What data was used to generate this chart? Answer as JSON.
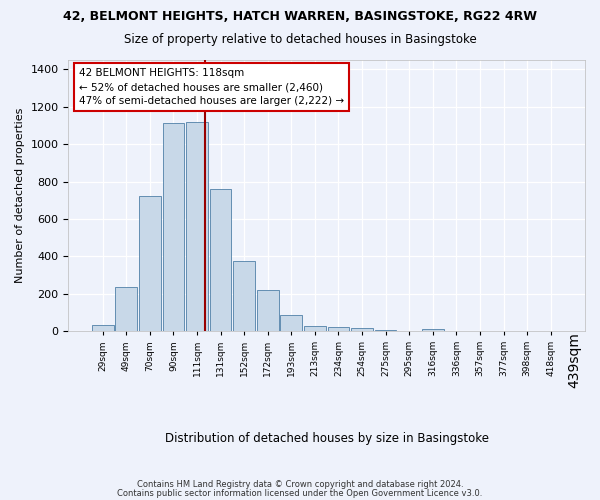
{
  "title_line1": "42, BELMONT HEIGHTS, HATCH WARREN, BASINGSTOKE, RG22 4RW",
  "title_line2": "Size of property relative to detached houses in Basingstoke",
  "xlabel": "Distribution of detached houses by size in Basingstoke",
  "ylabel": "Number of detached properties",
  "bin_labels": [
    "29sqm",
    "49sqm",
    "70sqm",
    "90sqm",
    "111sqm",
    "131sqm",
    "152sqm",
    "172sqm",
    "193sqm",
    "213sqm",
    "234sqm",
    "254sqm",
    "275sqm",
    "295sqm",
    "316sqm",
    "336sqm",
    "357sqm",
    "377sqm",
    "398sqm",
    "418sqm",
    "439sqm"
  ],
  "bar_heights": [
    30,
    235,
    725,
    1115,
    1120,
    760,
    375,
    220,
    88,
    28,
    22,
    15,
    8,
    0,
    12,
    0,
    0,
    0,
    0,
    0
  ],
  "bar_color": "#c8d8e8",
  "bar_edge_color": "#5080a8",
  "property_line_color": "#990000",
  "annotation_text": "42 BELMONT HEIGHTS: 118sqm\n← 52% of detached houses are smaller (2,460)\n47% of semi-detached houses are larger (2,222) →",
  "annotation_box_color": "#ffffff",
  "annotation_box_edge_color": "#cc0000",
  "ylim": [
    0,
    1450
  ],
  "yticks": [
    0,
    200,
    400,
    600,
    800,
    1000,
    1200,
    1400
  ],
  "footer_line1": "Contains HM Land Registry data © Crown copyright and database right 2024.",
  "footer_line2": "Contains public sector information licensed under the Open Government Licence v3.0.",
  "background_color": "#eef2fb",
  "grid_color": "#ffffff"
}
